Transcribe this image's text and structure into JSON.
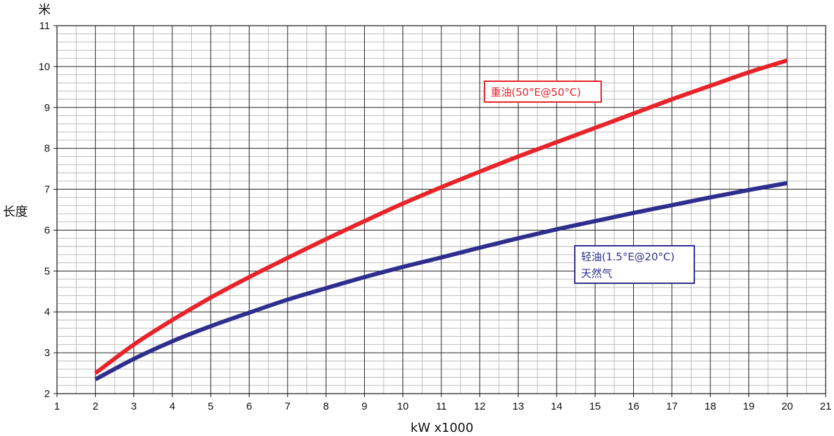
{
  "chart_data": {
    "type": "line",
    "title": "",
    "xlabel": "kW x1000",
    "ylabel": "长度",
    "y_unit": "米",
    "xlim": [
      1,
      21
    ],
    "ylim": [
      2,
      11
    ],
    "x_ticks": [
      1,
      2,
      3,
      4,
      5,
      6,
      7,
      8,
      9,
      10,
      11,
      12,
      13,
      14,
      15,
      16,
      17,
      18,
      19,
      20,
      21
    ],
    "y_ticks": [
      2,
      3,
      4,
      5,
      6,
      7,
      8,
      9,
      10,
      11
    ],
    "grid": true,
    "minor_grid": true,
    "series": [
      {
        "name": "重油(50°E@50°C)",
        "color": "#e8242a",
        "x": [
          2,
          3,
          4,
          5,
          6,
          7,
          8,
          9,
          10,
          11,
          12,
          13,
          14,
          15,
          16,
          17,
          18,
          19,
          20
        ],
        "values": [
          2.5,
          3.2,
          3.8,
          4.35,
          4.85,
          5.32,
          5.78,
          6.22,
          6.65,
          7.05,
          7.43,
          7.8,
          8.15,
          8.5,
          8.85,
          9.2,
          9.53,
          9.86,
          10.15
        ]
      },
      {
        "name": "轻油(1.5°E@20°C)",
        "name_line2": "天然气",
        "color": "#2e2e8f",
        "x": [
          2,
          3,
          4,
          5,
          6,
          7,
          8,
          9,
          10,
          11,
          12,
          13,
          14,
          15,
          16,
          17,
          18,
          19,
          20
        ],
        "values": [
          2.35,
          2.85,
          3.28,
          3.65,
          3.98,
          4.3,
          4.58,
          4.85,
          5.1,
          5.33,
          5.57,
          5.8,
          6.02,
          6.22,
          6.42,
          6.61,
          6.8,
          6.98,
          7.15
        ]
      }
    ]
  }
}
